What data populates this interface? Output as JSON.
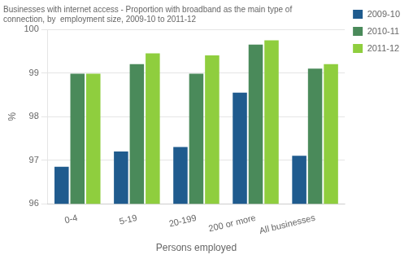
{
  "chart_data": {
    "type": "bar",
    "title": [
      "Businesses with internet access - Proportion with broadband as the main type of",
      "connection, by  employment size, 2009-10 to 2011-12"
    ],
    "xlabel": "Persons employed",
    "ylabel": "%",
    "categories": [
      "0-4",
      "5-19",
      "20-199",
      "200 or more",
      "All businesses"
    ],
    "series": [
      {
        "name": "2009-10",
        "color": "#1f5b8e",
        "values": [
          96.85,
          97.2,
          97.3,
          98.55,
          97.1
        ]
      },
      {
        "name": "2010-11",
        "color": "#4a8a5a",
        "values": [
          98.98,
          99.2,
          98.98,
          99.65,
          99.1
        ]
      },
      {
        "name": "2011-12",
        "color": "#8fce3e",
        "values": [
          98.98,
          99.45,
          99.4,
          99.75,
          99.2
        ]
      }
    ],
    "ylim": [
      96,
      100
    ],
    "yticks": [
      96,
      97,
      98,
      99,
      100
    ],
    "grid": true,
    "legend": "right"
  }
}
